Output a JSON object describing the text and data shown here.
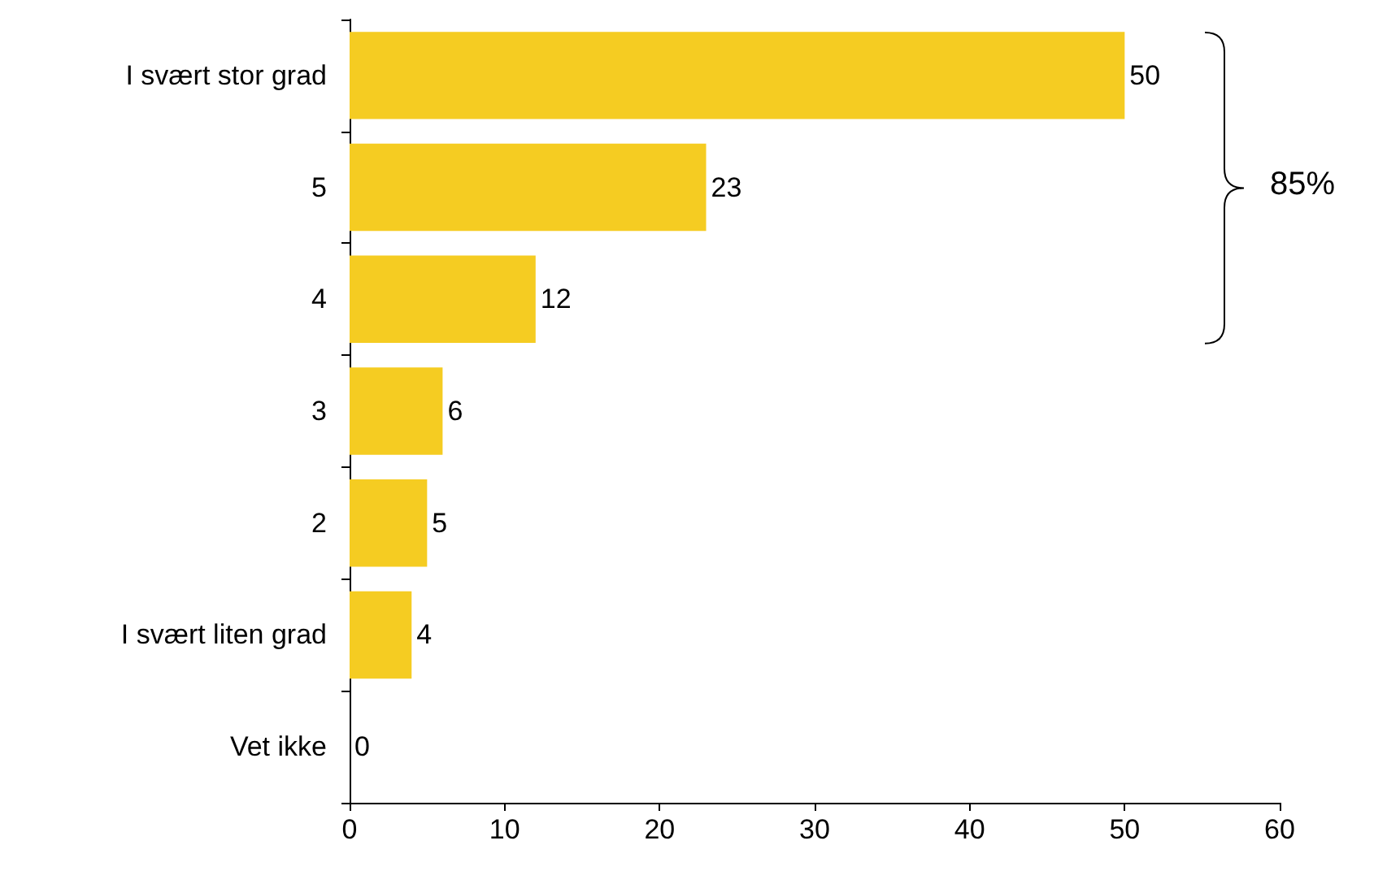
{
  "chart_data": {
    "type": "bar",
    "orientation": "horizontal",
    "categories": [
      "I svært stor grad",
      "5",
      "4",
      "3",
      "2",
      "I svært liten grad",
      "Vet ikke"
    ],
    "values": [
      50,
      23,
      12,
      6,
      5,
      4,
      0
    ],
    "color": "#f5cc22",
    "xlim": [
      0,
      60
    ],
    "xticks": [
      0,
      10,
      20,
      30,
      40,
      50,
      60
    ],
    "grid": false,
    "data_labels": true,
    "annotations": [
      "85%"
    ]
  }
}
